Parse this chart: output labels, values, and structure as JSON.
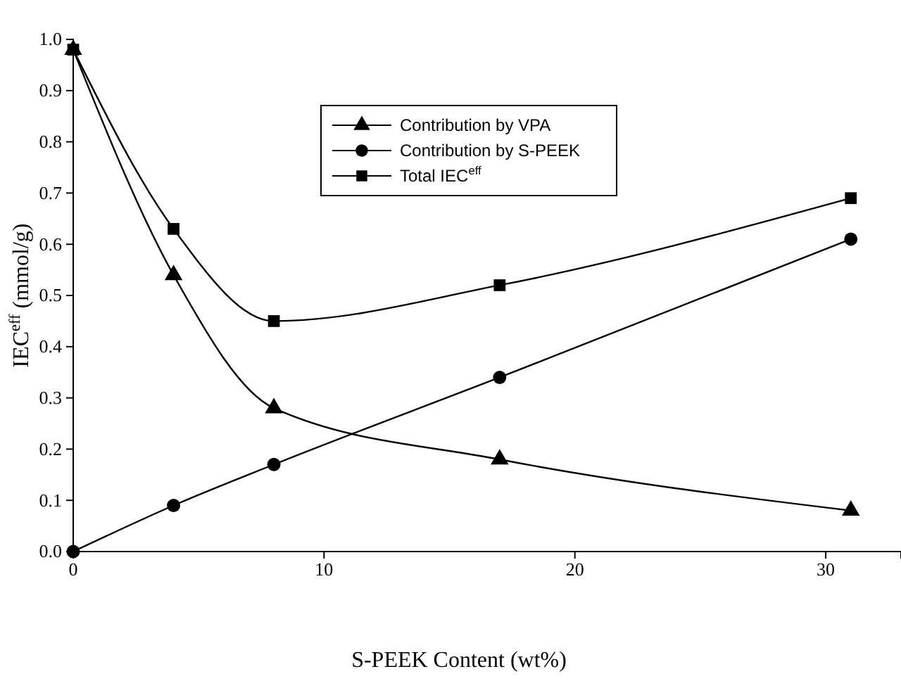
{
  "chart_data": {
    "type": "line",
    "xlabel": "S-PEEK Content (wt%)",
    "ylabel": "IEC$^{eff}$ (mmol/g)",
    "x": [
      0,
      4,
      8,
      17,
      31
    ],
    "series": [
      {
        "name": "Contribution by VPA",
        "color": "#000000",
        "marker": "triangle",
        "values": [
          0.98,
          0.54,
          0.28,
          0.18,
          0.08
        ]
      },
      {
        "name": "Contribution by S-PEEK",
        "color": "#000000",
        "marker": "circle",
        "values": [
          0,
          0.09,
          0.17,
          0.34,
          0.61
        ]
      },
      {
        "name": "Total IEC$^{eff}$",
        "color": "#000000",
        "marker": "square",
        "values": [
          0.98,
          0.63,
          0.45,
          0.52,
          0.69
        ]
      }
    ],
    "xlim": [
      0,
      33
    ],
    "xticks": [
      0,
      10,
      20,
      30
    ],
    "ylim": [
      0,
      1
    ],
    "yticks": [
      {
        "value": 0,
        "label": "0.0"
      },
      {
        "value": 0.1,
        "label": "0.1"
      },
      {
        "value": 0.2,
        "label": "0.2"
      },
      {
        "value": 0.3,
        "label": "0.3"
      },
      {
        "value": 0.4,
        "label": "0.4"
      },
      {
        "value": 0.5,
        "label": "0.5"
      },
      {
        "value": 0.6,
        "label": "0.6"
      },
      {
        "value": 0.7,
        "label": "0.7"
      },
      {
        "value": 0.8,
        "label": "0.8"
      },
      {
        "value": 0.9,
        "label": "0.9"
      },
      {
        "value": 1,
        "label": "1.0"
      }
    ],
    "grid": false,
    "legend": "top",
    "line_style": "solid"
  }
}
